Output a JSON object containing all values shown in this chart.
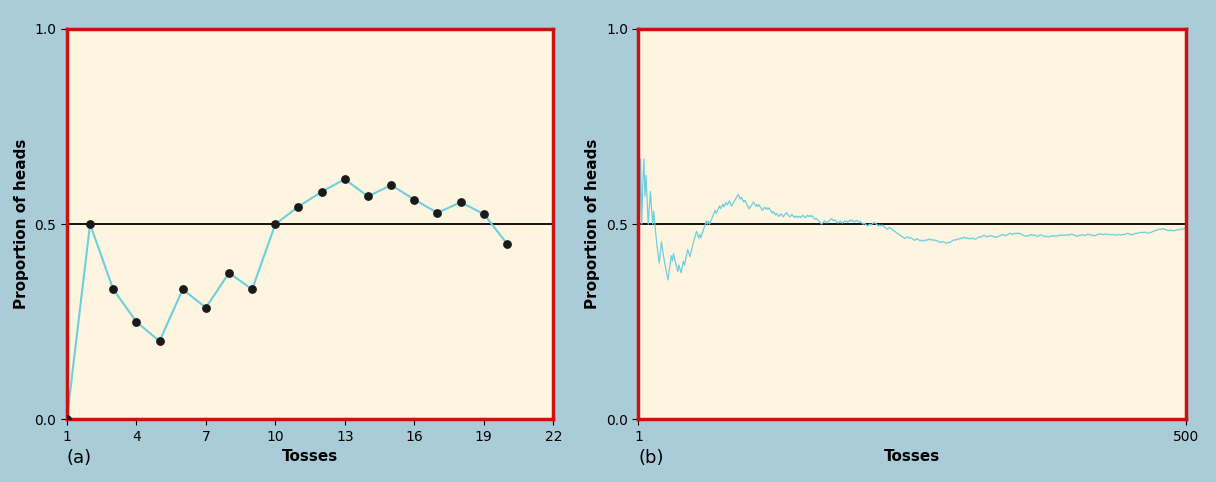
{
  "plot_a": {
    "x": [
      1,
      2,
      3,
      4,
      5,
      6,
      7,
      8,
      9,
      10,
      11,
      12,
      13,
      14,
      15,
      16,
      17,
      18,
      19,
      20
    ],
    "y": [
      0.0,
      0.5,
      0.333,
      0.25,
      0.2,
      0.333,
      0.286,
      0.375,
      0.333,
      0.5,
      0.545,
      0.583,
      0.615,
      0.571,
      0.6,
      0.563,
      0.529,
      0.556,
      0.526,
      0.45
    ],
    "xlabel": "Tosses",
    "ylabel": "Proportion of heads",
    "xlim": [
      1,
      22
    ],
    "ylim": [
      0,
      1.0
    ],
    "xticks": [
      1,
      4,
      7,
      10,
      13,
      16,
      19,
      22
    ],
    "yticks": [
      0,
      0.5,
      1.0
    ],
    "hline": 0.5,
    "line_color": "#6ecfdf",
    "marker_color": "#1a1a1a",
    "bg_color": "#fdf5e0",
    "label": "(a)"
  },
  "plot_b": {
    "n_tosses": 500,
    "xlabel": "Tosses",
    "ylabel": "Proportion of heads",
    "xlim": [
      1,
      500
    ],
    "ylim": [
      0,
      1.0
    ],
    "xticks": [
      1,
      500
    ],
    "yticks": [
      0,
      0.5,
      1.0
    ],
    "hline": 0.5,
    "line_color": "#6ecfdf",
    "bg_color": "#fdf5e0",
    "label": "(b)"
  },
  "outer_bg": "#aaccd8",
  "border_color": "#cc1111",
  "border_linewidth": 2.5
}
